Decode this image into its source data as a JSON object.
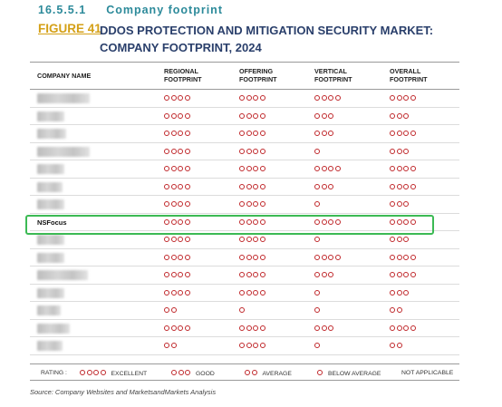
{
  "section": {
    "number": "16.5.5.1",
    "title": "Company footprint"
  },
  "figure": {
    "label": "FIGURE 41",
    "title": "DDOS PROTECTION AND MITIGATION SECURITY MARKET: COMPANY FOOTPRINT, 2024"
  },
  "columns": {
    "company": "COMPANY NAME",
    "regional": "REGIONAL FOOTPRINT",
    "offering": "OFFERING FOOTPRINT",
    "vertical": "VERTICAL FOOTPRINT",
    "overall": "OVERALL FOOTPRINT"
  },
  "rows": [
    {
      "name": "",
      "regional": 4,
      "offering": 4,
      "vertical": 4,
      "overall": 4
    },
    {
      "name": "",
      "regional": 4,
      "offering": 4,
      "vertical": 3,
      "overall": 3
    },
    {
      "name": "",
      "regional": 4,
      "offering": 4,
      "vertical": 3,
      "overall": 4
    },
    {
      "name": "",
      "regional": 4,
      "offering": 4,
      "vertical": 1,
      "overall": 3
    },
    {
      "name": "",
      "regional": 4,
      "offering": 4,
      "vertical": 4,
      "overall": 4
    },
    {
      "name": "",
      "regional": 4,
      "offering": 4,
      "vertical": 3,
      "overall": 4
    },
    {
      "name": "",
      "regional": 4,
      "offering": 4,
      "vertical": 1,
      "overall": 3
    },
    {
      "name": "NSFocus",
      "regional": 4,
      "offering": 4,
      "vertical": 4,
      "overall": 4
    },
    {
      "name": "",
      "regional": 4,
      "offering": 4,
      "vertical": 1,
      "overall": 3
    },
    {
      "name": "",
      "regional": 4,
      "offering": 4,
      "vertical": 4,
      "overall": 4
    },
    {
      "name": "",
      "regional": 4,
      "offering": 4,
      "vertical": 3,
      "overall": 4
    },
    {
      "name": "",
      "regional": 4,
      "offering": 4,
      "vertical": 1,
      "overall": 3
    },
    {
      "name": "",
      "regional": 2,
      "offering": 1,
      "vertical": 1,
      "overall": 2
    },
    {
      "name": "",
      "regional": 4,
      "offering": 4,
      "vertical": 3,
      "overall": 4
    },
    {
      "name": "",
      "regional": 2,
      "offering": 4,
      "vertical": 1,
      "overall": 2
    }
  ],
  "legend": {
    "prefix": "RATING :",
    "excellent": "EXCELLENT",
    "good": "GOOD",
    "average": "AVERAGE",
    "below_average": "BELOW AVERAGE",
    "not_applicable": "NOT APPLICABLE"
  },
  "source": "Source: Company Websites and MarketsandMarkets Analysis",
  "colors": {
    "dot": "#c0282b",
    "highlight": "#3cba54",
    "section": "#2c8a9a",
    "figure_label": "#d4a017",
    "figure_title": "#2a3f6b"
  }
}
